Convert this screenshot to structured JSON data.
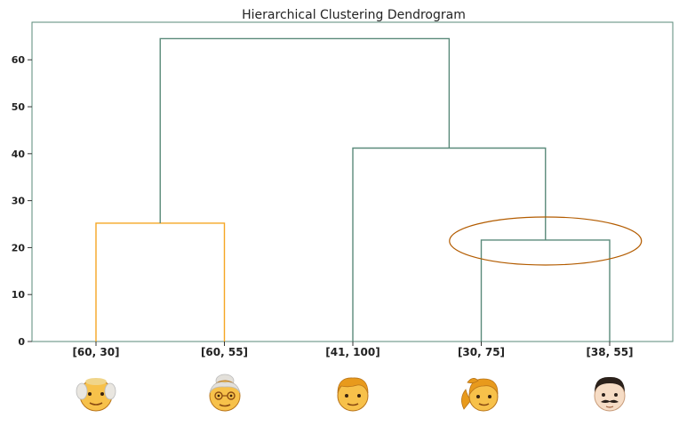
{
  "chart_data": {
    "type": "dendrogram",
    "title": "Hierarchical Clustering Dendrogram",
    "xlabel": "",
    "ylabel": "",
    "ylim": [
      0,
      68
    ],
    "yticks": [
      0,
      10,
      20,
      30,
      40,
      50,
      60
    ],
    "leaves": [
      {
        "label": "[60, 30]",
        "face": "elderly-man-emoji"
      },
      {
        "label": "[60, 55]",
        "face": "elderly-woman-emoji"
      },
      {
        "label": "[41, 100]",
        "face": "man-emoji"
      },
      {
        "label": "[30, 75]",
        "face": "woman-ponytail-emoji"
      },
      {
        "label": "[38, 55]",
        "face": "man-mustache-emoji"
      }
    ],
    "merges": [
      {
        "left": 0,
        "right": 1,
        "height": 25.2,
        "color": "#f5a623"
      },
      {
        "left": 3,
        "right": 4,
        "height": 21.6,
        "color": "#5a8a7a"
      },
      {
        "left": 2,
        "right": "m1",
        "height": 41.2,
        "color": "#5a8a7a"
      },
      {
        "left": "m0",
        "right": "m2",
        "height": 64.5,
        "color": "#5a8a7a"
      }
    ],
    "highlight": {
      "merge": 1,
      "shape": "ellipse",
      "color": "#b35c00"
    },
    "grid": false
  },
  "colors": {
    "cluster_a": "#f5a623",
    "cluster_b": "#5a8a7a",
    "highlight": "#b35c00",
    "axis": "#5a8a7a"
  }
}
